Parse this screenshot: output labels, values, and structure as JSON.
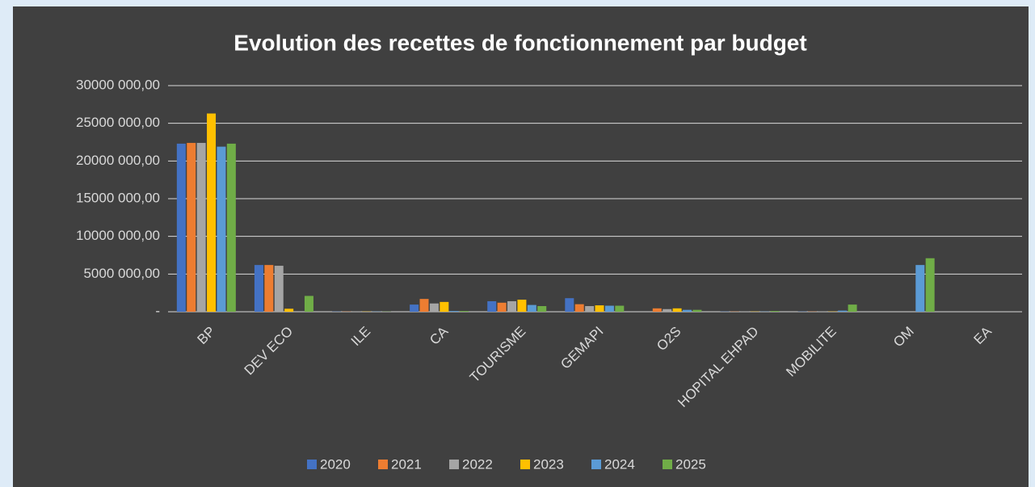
{
  "chart_data": {
    "type": "bar",
    "title": "Evolution des recettes de fonctionnement par budget",
    "categories": [
      "BP",
      "DEV ECO",
      "ILE",
      "CA",
      "TOURISME",
      "GEMAPI",
      "O2S",
      "HOPITAL EHPAD",
      "MOBILITE",
      "OM",
      "EA"
    ],
    "series": [
      {
        "name": "2020",
        "color": "#4472c4",
        "values": [
          22300000,
          6200000,
          30000,
          950000,
          1400000,
          1800000,
          0,
          30000,
          30000,
          0,
          0
        ]
      },
      {
        "name": "2021",
        "color": "#ed7d31",
        "values": [
          22400000,
          6200000,
          30000,
          1700000,
          1200000,
          1000000,
          450000,
          30000,
          30000,
          0,
          0
        ]
      },
      {
        "name": "2022",
        "color": "#a5a5a5",
        "values": [
          22400000,
          6100000,
          30000,
          1100000,
          1400000,
          750000,
          350000,
          30000,
          30000,
          0,
          0
        ]
      },
      {
        "name": "2023",
        "color": "#ffc000",
        "values": [
          26300000,
          400000,
          30000,
          1300000,
          1600000,
          850000,
          450000,
          30000,
          30000,
          0,
          0
        ]
      },
      {
        "name": "2024",
        "color": "#5b9bd5",
        "values": [
          21900000,
          0,
          30000,
          100000,
          900000,
          800000,
          250000,
          30000,
          150000,
          6200000,
          0
        ]
      },
      {
        "name": "2025",
        "color": "#70ad47",
        "values": [
          22300000,
          2100000,
          30000,
          100000,
          750000,
          800000,
          250000,
          100000,
          950000,
          7100000,
          0
        ]
      }
    ],
    "ylim": [
      0,
      30000000
    ],
    "yticks": [
      {
        "value": 0,
        "label": "-"
      },
      {
        "value": 5000000,
        "label": "5000 000,00"
      },
      {
        "value": 10000000,
        "label": "10000 000,00"
      },
      {
        "value": 15000000,
        "label": "15000 000,00"
      },
      {
        "value": 20000000,
        "label": "20000 000,00"
      },
      {
        "value": 25000000,
        "label": "25000 000,00"
      },
      {
        "value": 30000000,
        "label": "30000 000,00"
      }
    ],
    "grid": true,
    "legend": "bottom"
  }
}
